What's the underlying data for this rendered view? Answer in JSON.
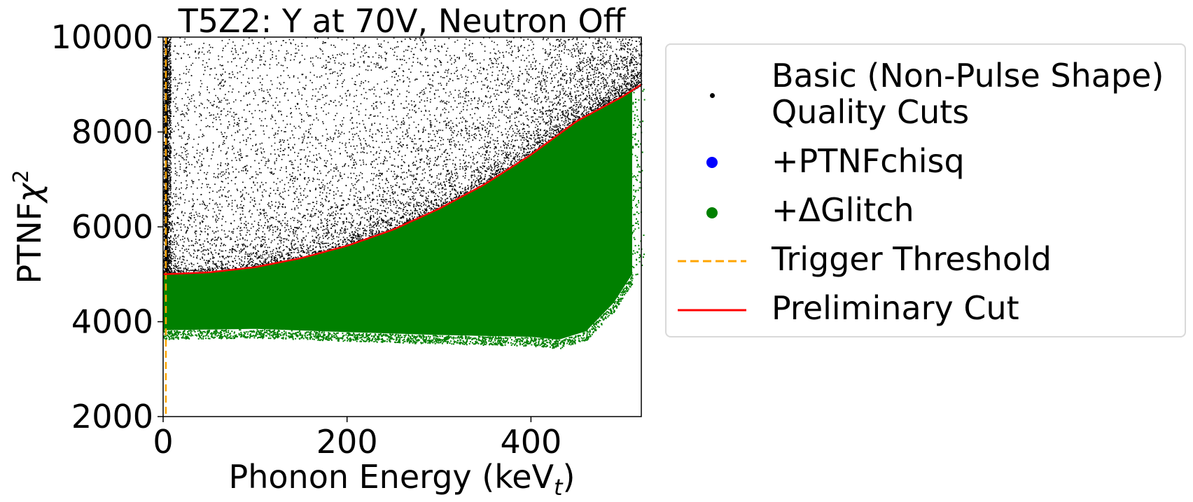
{
  "chart_data": {
    "type": "scatter",
    "title": "T5Z2: Y at 70V, Neutron Off",
    "xlabel": "Phonon Energy (keV",
    "xlabel_sub": "t",
    "xlabel_close": ")",
    "ylabel": "PTNF",
    "ylabel_sym": "χ",
    "ylabel_sup": "2",
    "xlim": [
      0,
      520
    ],
    "ylim": [
      2000,
      10000
    ],
    "xticks": [
      "0",
      "200",
      "400"
    ],
    "yticks": [
      "2000",
      "4000",
      "6000",
      "8000",
      "10000"
    ],
    "xtick_values": [
      0,
      200,
      400
    ],
    "ytick_values": [
      2000,
      4000,
      6000,
      8000,
      10000
    ],
    "grid": false,
    "legend_position": "outside-right",
    "series": [
      {
        "name": "Basic (Non-Pulse Shape) Quality Cuts",
        "name_line1": "Basic (Non-Pulse Shape)",
        "name_line2": "Quality Cuts",
        "color": "#000000",
        "marker": "point",
        "description_points": {
          "x_range": [
            0,
            520
          ],
          "y_range": [
            3500,
            10000
          ]
        }
      },
      {
        "name": "+PTNFchisq",
        "color": "#0000ff",
        "marker": "circle"
      },
      {
        "name": "+ΔGlitch",
        "color": "#008000",
        "marker": "circle",
        "band": {
          "x_range": [
            0,
            510
          ],
          "lower_y": [
            [
              0,
              3820
            ],
            [
              100,
              3850
            ],
            [
              200,
              3780
            ],
            [
              300,
              3720
            ],
            [
              400,
              3680
            ],
            [
              430,
              3620
            ],
            [
              460,
              3800
            ],
            [
              490,
              4400
            ],
            [
              510,
              5000
            ]
          ],
          "upper_follows_cut": true
        }
      },
      {
        "name": "Trigger Threshold",
        "color": "#ffa500",
        "style": "dashed",
        "x": 3
      },
      {
        "name": "Preliminary Cut",
        "color": "#ff0000",
        "style": "solid",
        "curve": {
          "x": [
            0,
            50,
            100,
            150,
            200,
            250,
            300,
            350,
            400,
            450,
            500,
            520
          ],
          "y": [
            5000,
            5040,
            5150,
            5340,
            5600,
            5940,
            6380,
            6900,
            7520,
            8230,
            8750,
            9000
          ]
        }
      }
    ]
  }
}
